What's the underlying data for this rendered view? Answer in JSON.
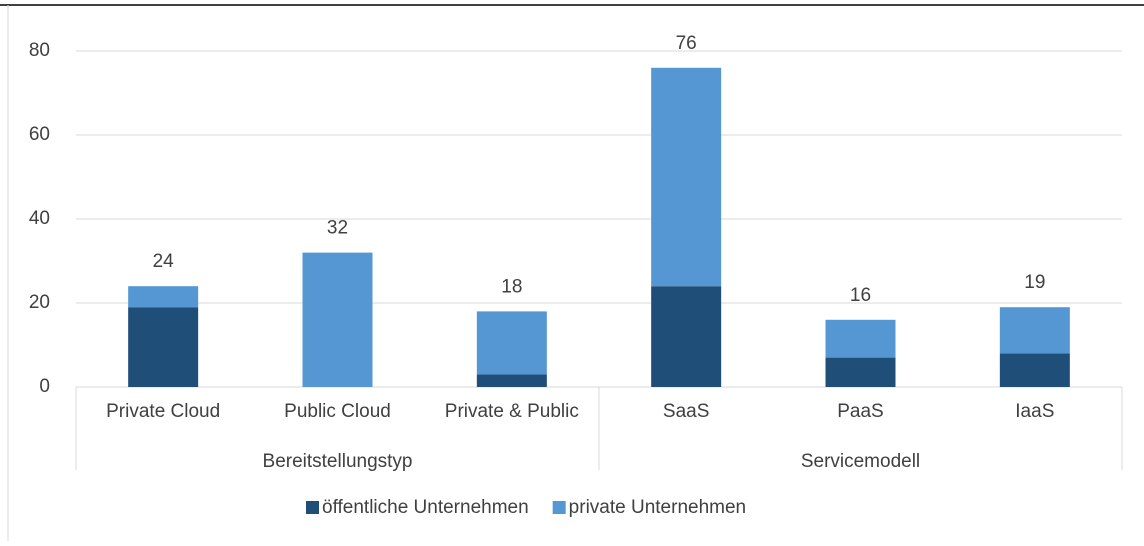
{
  "chart_data": {
    "type": "stacked_bar",
    "groups": [
      {
        "name": "Bereitstellungstyp",
        "categories": [
          "Private Cloud",
          "Public Cloud",
          "Private & Public"
        ]
      },
      {
        "name": "Servicemodell",
        "categories": [
          "SaaS",
          "PaaS",
          "IaaS"
        ]
      }
    ],
    "series": [
      {
        "name": "öffentliche Unternehmen",
        "color": "#1f4e79",
        "values": [
          19,
          0,
          3,
          24,
          7,
          8
        ]
      },
      {
        "name": "private Unternehmen",
        "color": "#5597d3",
        "values": [
          5,
          32,
          15,
          52,
          9,
          11
        ]
      }
    ],
    "totals": [
      24,
      32,
      18,
      76,
      16,
      19
    ],
    "ylim": [
      0,
      80
    ],
    "yticks": [
      0,
      20,
      40,
      60,
      80
    ],
    "grid": true,
    "legend": "bottom"
  }
}
